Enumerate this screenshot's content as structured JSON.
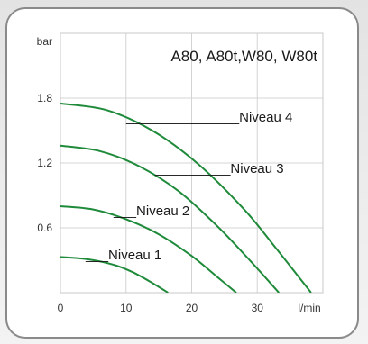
{
  "chart_data": {
    "type": "line",
    "title": "A80, A80t,W80, W80t",
    "xlabel": "l/min",
    "ylabel": "bar",
    "xlim": [
      0,
      40
    ],
    "ylim": [
      0,
      2.4
    ],
    "x_ticks": [
      0,
      10,
      20,
      30
    ],
    "x_tick_labels": [
      "0",
      "10",
      "20",
      "30"
    ],
    "y_ticks": [
      0.6,
      1.2,
      1.8
    ],
    "y_tick_labels": [
      "0.6",
      "1.2",
      "1.8"
    ],
    "grid": true,
    "line_color": "#1e8a3a",
    "series": [
      {
        "name": "Niveau 1",
        "x": [
          0,
          4,
          8,
          11,
          14,
          16.4
        ],
        "y": [
          0.33,
          0.31,
          0.26,
          0.19,
          0.09,
          0
        ]
      },
      {
        "name": "Niveau 2",
        "x": [
          0,
          5,
          10,
          15,
          20,
          24,
          26.8
        ],
        "y": [
          0.8,
          0.77,
          0.68,
          0.54,
          0.34,
          0.14,
          0
        ]
      },
      {
        "name": "Niveau 3",
        "x": [
          0,
          6,
          12,
          18,
          24,
          29,
          33.3
        ],
        "y": [
          1.36,
          1.31,
          1.17,
          0.94,
          0.61,
          0.29,
          0
        ]
      },
      {
        "name": "Niveau 4",
        "x": [
          0,
          7,
          14,
          21,
          28,
          33,
          38.2
        ],
        "y": [
          1.75,
          1.69,
          1.5,
          1.19,
          0.77,
          0.4,
          0
        ]
      }
    ],
    "annotations": [
      {
        "text": "_______________Niveau 4",
        "series": "Niveau 4"
      },
      {
        "text": "__________Niveau 3",
        "series": "Niveau 3"
      },
      {
        "text": "___Niveau 2",
        "series": "Niveau 2"
      },
      {
        "text": "___Niveau 1",
        "series": "Niveau 1"
      }
    ]
  }
}
